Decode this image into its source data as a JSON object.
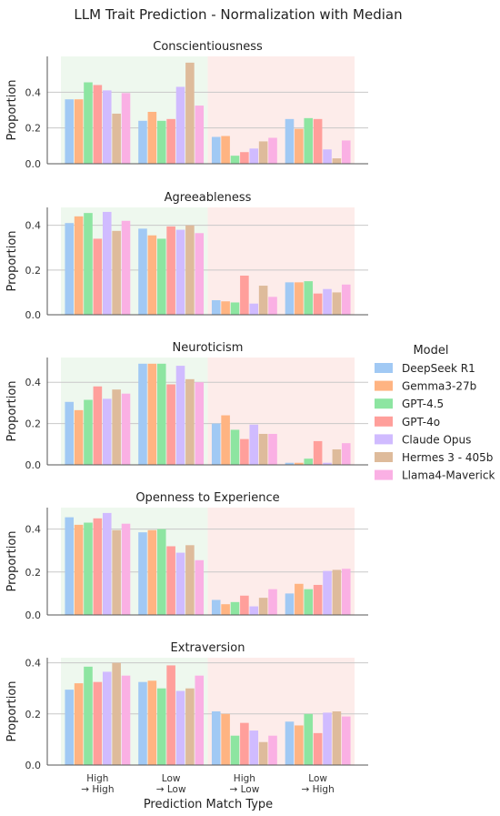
{
  "title": "LLM Trait Prediction - Normalization with Median",
  "xlabel": "Prediction Match Type",
  "legend_title": "Model",
  "colors": {
    "DeepSeek R1": "#a1c9f4",
    "Gemma3-27b": "#ffb482",
    "GPT-4.5": "#8de5a1",
    "GPT-4o": "#ff9f9b",
    "Claude Opus": "#d0bbff",
    "Hermes 3 - 405b": "#debb9b",
    "Llama4-Maverick": "#fab0e4",
    "match_band": "#eef8ee",
    "mismatch_band": "#fdecea"
  },
  "chart_data": {
    "type": "bar",
    "categories": [
      "High\n→ High",
      "Low\n→ Low",
      "High\n→ Low",
      "Low\n→ High"
    ],
    "series_names": [
      "DeepSeek R1",
      "Gemma3-27b",
      "GPT-4.5",
      "GPT-4o",
      "Claude Opus",
      "Hermes 3 - 405b",
      "Llama4-Maverick"
    ],
    "legend_position": "right",
    "grid": "horizontal",
    "panels": [
      {
        "title": "Conscientiousness",
        "ylabel": "Proportion",
        "ylim": [
          0,
          0.6
        ],
        "yticks": [
          0.0,
          0.2,
          0.4
        ],
        "values": [
          [
            0.36,
            0.36,
            0.455,
            0.44,
            0.41,
            0.28,
            0.395
          ],
          [
            0.24,
            0.29,
            0.24,
            0.25,
            0.43,
            0.565,
            0.325
          ],
          [
            0.15,
            0.155,
            0.045,
            0.065,
            0.085,
            0.125,
            0.145
          ],
          [
            0.25,
            0.195,
            0.255,
            0.25,
            0.08,
            0.03,
            0.13
          ]
        ]
      },
      {
        "title": "Agreeableness",
        "ylabel": "Proportion",
        "ylim": [
          0,
          0.48
        ],
        "yticks": [
          0.0,
          0.2,
          0.4
        ],
        "values": [
          [
            0.41,
            0.44,
            0.455,
            0.34,
            0.46,
            0.375,
            0.42
          ],
          [
            0.385,
            0.355,
            0.34,
            0.395,
            0.38,
            0.4,
            0.365
          ],
          [
            0.065,
            0.06,
            0.055,
            0.175,
            0.05,
            0.13,
            0.08
          ],
          [
            0.145,
            0.145,
            0.15,
            0.095,
            0.115,
            0.1,
            0.135
          ]
        ]
      },
      {
        "title": "Neuroticism",
        "ylabel": "Proportion",
        "ylim": [
          0,
          0.52
        ],
        "yticks": [
          0.0,
          0.2,
          0.4
        ],
        "values": [
          [
            0.305,
            0.265,
            0.315,
            0.38,
            0.32,
            0.365,
            0.345
          ],
          [
            0.49,
            0.49,
            0.49,
            0.39,
            0.48,
            0.415,
            0.4
          ],
          [
            0.2,
            0.24,
            0.17,
            0.125,
            0.195,
            0.15,
            0.15
          ],
          [
            0.01,
            0.01,
            0.03,
            0.115,
            0.01,
            0.075,
            0.105
          ]
        ]
      },
      {
        "title": "Openness to Experience",
        "ylabel": "Proportion",
        "ylim": [
          0,
          0.5
        ],
        "yticks": [
          0.0,
          0.2,
          0.4
        ],
        "values": [
          [
            0.455,
            0.42,
            0.43,
            0.45,
            0.475,
            0.395,
            0.425
          ],
          [
            0.385,
            0.395,
            0.4,
            0.32,
            0.29,
            0.325,
            0.255
          ],
          [
            0.07,
            0.05,
            0.06,
            0.09,
            0.04,
            0.08,
            0.12
          ],
          [
            0.1,
            0.145,
            0.12,
            0.14,
            0.205,
            0.21,
            0.215
          ]
        ]
      },
      {
        "title": "Extraversion",
        "ylabel": "Proportion",
        "ylim": [
          0,
          0.42
        ],
        "yticks": [
          0.0,
          0.2,
          0.4
        ],
        "values": [
          [
            0.295,
            0.32,
            0.385,
            0.325,
            0.365,
            0.4,
            0.35
          ],
          [
            0.325,
            0.33,
            0.3,
            0.39,
            0.29,
            0.3,
            0.35
          ],
          [
            0.21,
            0.2,
            0.115,
            0.165,
            0.135,
            0.09,
            0.115
          ],
          [
            0.17,
            0.155,
            0.2,
            0.125,
            0.205,
            0.21,
            0.19
          ]
        ]
      }
    ]
  }
}
